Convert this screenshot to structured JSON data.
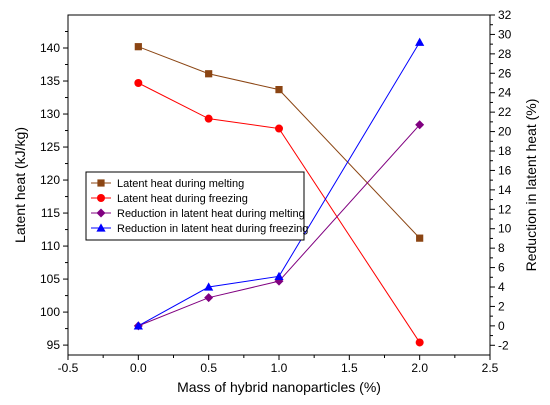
{
  "chart_data": {
    "type": "line",
    "title": "",
    "xlabel": "Mass of hybrid nanoparticles (%)",
    "ylabel_left": "Latent heat (kJ/kg)",
    "ylabel_right": "Reduction in latent heat (%)",
    "xlim": [
      -0.5,
      2.5
    ],
    "ylim_left": [
      93.5,
      145
    ],
    "ylim_right": [
      -3,
      32
    ],
    "x_ticks": [
      "-0.5",
      "0.0",
      "0.5",
      "1.0",
      "1.5",
      "2.0",
      "2.5"
    ],
    "y_left_ticks": [
      "95",
      "100",
      "105",
      "110",
      "115",
      "120",
      "125",
      "130",
      "135",
      "140"
    ],
    "y_right_ticks": [
      "-2",
      "0",
      "2",
      "4",
      "6",
      "8",
      "10",
      "12",
      "14",
      "16",
      "18",
      "20",
      "22",
      "24",
      "26",
      "28",
      "30",
      "32"
    ],
    "grid": false,
    "legend_position": "left-middle",
    "series": [
      {
        "name": "Latent heat during melting",
        "axis": "left",
        "color": "#8B4513",
        "marker": "square",
        "x": [
          0.0,
          0.5,
          1.0,
          2.0
        ],
        "y": [
          140.2,
          136.1,
          133.7,
          111.2
        ]
      },
      {
        "name": "Latent heat during freezing",
        "axis": "left",
        "color": "#FF0000",
        "marker": "circle",
        "x": [
          0.0,
          0.5,
          1.0,
          2.0
        ],
        "y": [
          134.7,
          129.3,
          127.8,
          95.4
        ]
      },
      {
        "name": "Reduction in latent heat during melting",
        "axis": "right",
        "color": "#800080",
        "marker": "diamond",
        "x": [
          0.0,
          0.5,
          1.0,
          2.0
        ],
        "y": [
          0.0,
          2.9,
          4.6,
          20.7
        ]
      },
      {
        "name": "Reduction in latent heat during freezing",
        "axis": "right",
        "color": "#0000FF",
        "marker": "triangle",
        "x": [
          0.0,
          0.5,
          1.0,
          2.0
        ],
        "y": [
          0.0,
          4.0,
          5.1,
          29.2
        ]
      }
    ]
  }
}
